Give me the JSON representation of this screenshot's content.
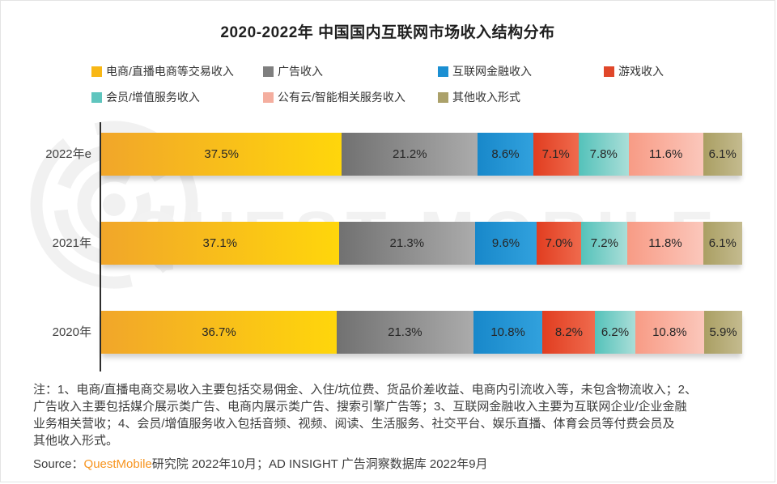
{
  "page": {
    "title": "2020-2022年 中国国内互联网市场收入结构分布"
  },
  "watermark": {
    "text": "QUEST MOBILE"
  },
  "chart_data": {
    "type": "bar",
    "subtype": "horizontal-stacked",
    "title": "2020-2022年 中国国内互联网市场收入结构分布",
    "categories": [
      "2022年e",
      "2021年",
      "2020年"
    ],
    "series": [
      {
        "name": "电商/直播电商等交易收入",
        "values": [
          37.5,
          37.1,
          36.7
        ],
        "legend_color": "#F8B715",
        "color_start": "#F1A62A",
        "color_end": "#FFD60B"
      },
      {
        "name": "广告收入",
        "values": [
          21.2,
          21.3,
          21.3
        ],
        "legend_color": "#7F7F7F",
        "color_start": "#717171",
        "color_end": "#ABABAB"
      },
      {
        "name": "互联网金融收入",
        "values": [
          8.6,
          9.6,
          10.8
        ],
        "legend_color": "#1B8FD2",
        "color_start": "#1888CA",
        "color_end": "#31A1DD"
      },
      {
        "name": "游戏收入",
        "values": [
          7.1,
          7.0,
          8.2
        ],
        "legend_color": "#E0472A",
        "color_start": "#E13D20",
        "color_end": "#EF6A4D"
      },
      {
        "name": "会员/增值服务收入",
        "values": [
          7.8,
          7.2,
          6.2
        ],
        "legend_color": "#5FC5BE",
        "color_start": "#54C2BA",
        "color_end": "#AADED8"
      },
      {
        "name": "公有云/智能相关服务收入",
        "values": [
          11.6,
          11.8,
          10.8
        ],
        "legend_color": "#F4AE9F",
        "color_start": "#F89B85",
        "color_end": "#FBC7BB"
      },
      {
        "name": "其他收入形式",
        "values": [
          6.1,
          6.1,
          5.9
        ],
        "legend_color": "#ABA16A",
        "color_start": "#AA9F63",
        "color_end": "#C4BB8F"
      }
    ],
    "value_suffix": "%",
    "legend_position": "top",
    "grid": false,
    "xlim": [
      0,
      100
    ]
  },
  "notes": {
    "lines": [
      "注：1、电商/直播电商交易收入主要包括交易佣金、入住/坑位费、货品价差收益、电商内引流收入等，未包含物流收入；2、",
      "广告收入主要包括媒介展示类广告、电商内展示类广告、搜索引擎广告等；3、互联网金融收入主要为互联网企业/企业金融",
      "业务相关营收；4、会员/增值服务收入包括音频、视频、阅读、生活服务、社交平台、娱乐直播、体育会员等付费会员及",
      "其他收入形式。"
    ]
  },
  "source": {
    "prefix": "Source：",
    "brand": "QuestMobile",
    "brand_color": "#F7941E",
    "suffix": "研究院 2022年10月；AD INSIGHT 广告洞察数据库 2022年9月"
  }
}
